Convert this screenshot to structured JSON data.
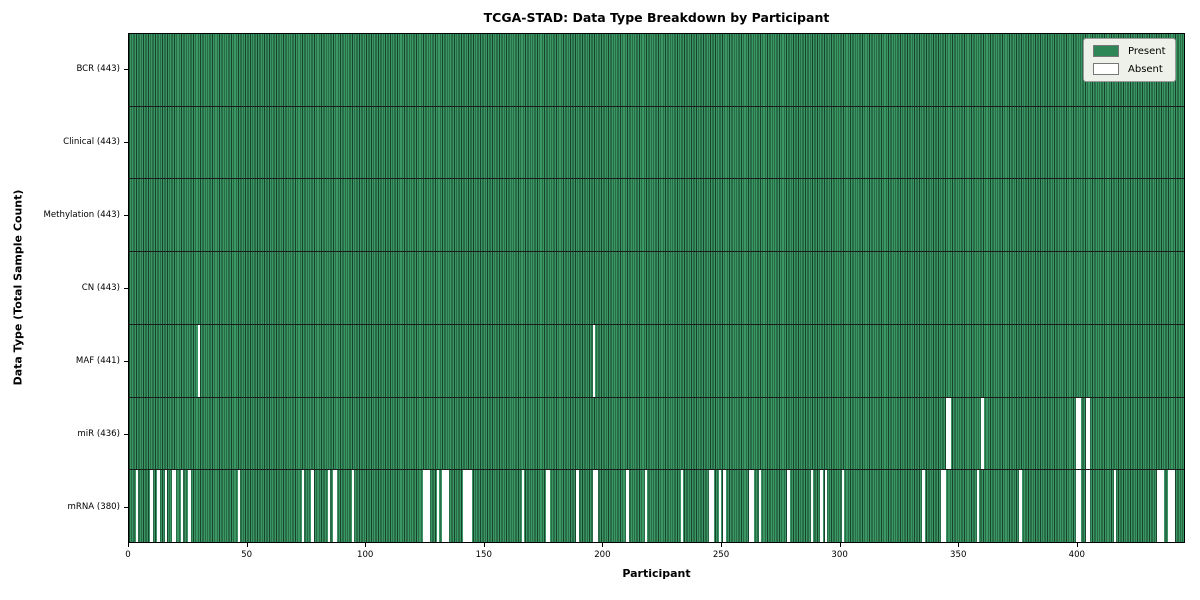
{
  "title": "TCGA-STAD: Data Type Breakdown by Participant",
  "chart_data": {
    "type": "heatmap",
    "title": "TCGA-STAD: Data Type Breakdown by Participant",
    "xlabel": "Participant",
    "ylabel": "Data Type (Total Sample Count)",
    "n_participants": 443,
    "x_ticks": [
      0,
      50,
      100,
      150,
      200,
      250,
      300,
      350,
      400
    ],
    "grid": false,
    "legend": {
      "position": "upper right",
      "entries": [
        {
          "label": "Present",
          "color": "#2e8656"
        },
        {
          "label": "Absent",
          "color": "#ffffff"
        }
      ]
    },
    "colors": {
      "present_fill": "#3a9663",
      "bar_edge": "#17432c",
      "absent": "#ffffff",
      "row_divider": "#1c1c1c",
      "legend_bg": "#eef1ea"
    },
    "rows": [
      {
        "data_type": "BCR",
        "label": "BCR (443)",
        "present_count": 443,
        "absent_participants": []
      },
      {
        "data_type": "Clinical",
        "label": "Clinical (443)",
        "present_count": 443,
        "absent_participants": []
      },
      {
        "data_type": "Methylation",
        "label": "Methylation (443)",
        "present_count": 443,
        "absent_participants": []
      },
      {
        "data_type": "CN",
        "label": "CN (443)",
        "present_count": 443,
        "absent_participants": []
      },
      {
        "data_type": "MAF",
        "label": "MAF (441)",
        "present_count": 441,
        "absent_participants": [
          29,
          196
        ]
      },
      {
        "data_type": "miR",
        "label": "miR (436)",
        "present_count": 436,
        "absent_participants": [
          345,
          346,
          360,
          400,
          401,
          404,
          405
        ]
      },
      {
        "data_type": "mRNA",
        "label": "mRNA (380)",
        "present_count": 380,
        "absent_participants": [
          3,
          9,
          12,
          15,
          18,
          19,
          22,
          25,
          46,
          73,
          77,
          84,
          86,
          87,
          94,
          124,
          125,
          126,
          130,
          132,
          133,
          134,
          141,
          142,
          144,
          147,
          166,
          176,
          177,
          189,
          196,
          197,
          210,
          218,
          233,
          245,
          246,
          249,
          251,
          262,
          263,
          266,
          278,
          288,
          292,
          294,
          301,
          335,
          343,
          344,
          358,
          376,
          400,
          401,
          404,
          405,
          416,
          434,
          435,
          436,
          439,
          440,
          442
        ]
      }
    ]
  }
}
